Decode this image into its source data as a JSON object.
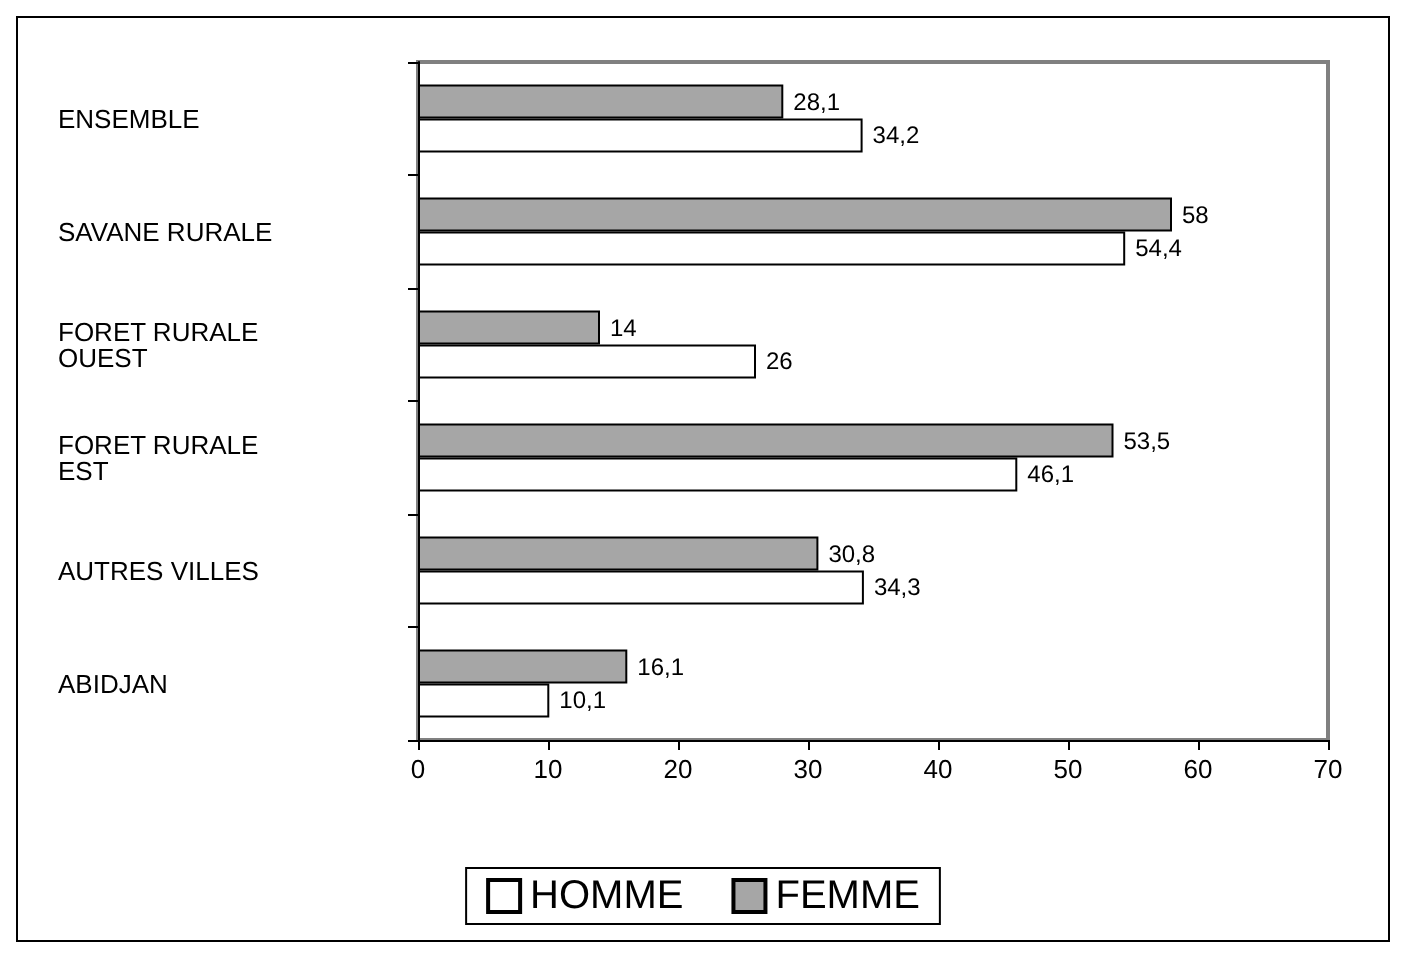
{
  "chart_data": {
    "type": "bar",
    "orientation": "horizontal",
    "categories": [
      "ENSEMBLE",
      "SAVANE RURALE",
      "FORET RURALE\nOUEST",
      "FORET RURALE\nEST",
      "AUTRES VILLES",
      "ABIDJAN"
    ],
    "series": [
      {
        "name": "HOMME",
        "color": "#ffffff",
        "values": [
          34.2,
          54.4,
          26,
          46.1,
          34.3,
          10.1
        ],
        "value_labels": [
          "34,2",
          "54,4",
          "26",
          "46,1",
          "34,3",
          "10,1"
        ]
      },
      {
        "name": "FEMME",
        "color": "#a6a6a6",
        "values": [
          28.1,
          58,
          14,
          53.5,
          30.8,
          16.1
        ],
        "value_labels": [
          "28,1",
          "58",
          "14",
          "53,5",
          "30,8",
          "16,1"
        ]
      }
    ],
    "xlim": [
      0,
      70
    ],
    "xticks": [
      0,
      10,
      20,
      30,
      40,
      50,
      60,
      70
    ],
    "grid": false,
    "legend": "bottom"
  }
}
